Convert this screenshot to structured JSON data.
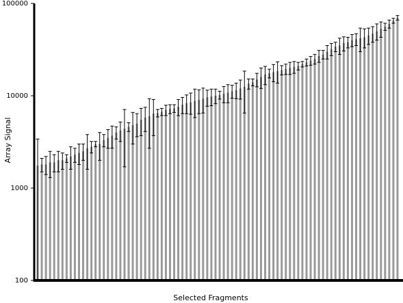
{
  "chart_data": {
    "type": "bar",
    "ylabel": "Array Signal",
    "xlabel": "Selected Fragments",
    "log_y": true,
    "color": "#999999",
    "error_color": "#000000",
    "ylim": [
      100,
      100000
    ],
    "yticks": [
      100,
      1000,
      10000,
      100000
    ],
    "values": [
      1750,
      1800,
      1800,
      1900,
      1900,
      2000,
      2000,
      2100,
      2200,
      2300,
      2400,
      2500,
      2700,
      2800,
      3000,
      3000,
      3300,
      3500,
      3700,
      4000,
      4200,
      4400,
      4600,
      4800,
      5000,
      5500,
      5800,
      6000,
      6400,
      6500,
      6700,
      7000,
      7200,
      7300,
      7600,
      8000,
      8300,
      8500,
      8800,
      9000,
      9300,
      9600,
      9800,
      10000,
      10200,
      10500,
      10800,
      11200,
      11500,
      12000,
      12500,
      13500,
      14000,
      15000,
      16000,
      17000,
      17500,
      18000,
      18500,
      19000,
      19500,
      20000,
      20500,
      21000,
      22000,
      23000,
      24000,
      25000,
      27000,
      28000,
      30000,
      32000,
      34000,
      35000,
      37000,
      38000,
      40000,
      41000,
      42000,
      43000,
      45000,
      47000,
      50000,
      53000,
      56000,
      60000,
      65000,
      70000
    ],
    "errors": [
      1650,
      300,
      400,
      600,
      400,
      500,
      400,
      200,
      600,
      400,
      600,
      500,
      1100,
      400,
      200,
      1000,
      500,
      800,
      1000,
      600,
      1000,
      2700,
      500,
      1800,
      1400,
      1800,
      1700,
      3300,
      2700,
      600,
      600,
      900,
      800,
      700,
      1500,
      1600,
      1900,
      2200,
      3000,
      2600,
      2800,
      1900,
      2000,
      1800,
      1000,
      2100,
      2400,
      1800,
      2200,
      2800,
      6000,
      1700,
      1200,
      2500,
      4000,
      3800,
      1900,
      3800,
      4800,
      2200,
      2500,
      3000,
      3000,
      2000,
      1500,
      2000,
      2600,
      3000,
      4000,
      3000,
      5000,
      4800,
      4000,
      7000,
      6500,
      5000,
      6000,
      6000,
      12000,
      10000,
      9000,
      9000,
      10000,
      10000,
      5000,
      6000,
      4000,
      4000
    ]
  }
}
